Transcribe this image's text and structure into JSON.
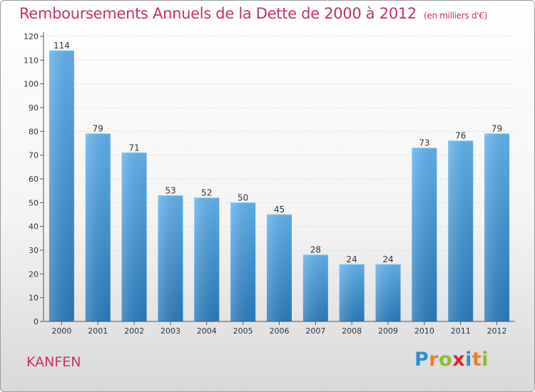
{
  "header": {
    "title": "Remboursements Annuels de la Dette de 2000 à 2012",
    "unit": "(en milliers d'€)"
  },
  "footer": {
    "town": "KANFEN",
    "logo_letters": [
      "P",
      "r",
      "o",
      "x",
      "i",
      "t",
      "i"
    ],
    "logo_colors": [
      "#2a8fd6",
      "#f07c22",
      "#8bbd2d",
      "#d6272d",
      "#2a8fd6",
      "#f07c22",
      "#8bbd2d"
    ]
  },
  "colors": {
    "title": "#c8325d",
    "bar_top": "#62b3ee",
    "bar_bottom": "#2b7cbd",
    "axis": "#555555",
    "grid": "#d6d6d6"
  },
  "chart_data": {
    "type": "bar",
    "categories": [
      "2000",
      "2001",
      "2002",
      "2003",
      "2004",
      "2005",
      "2006",
      "2007",
      "2008",
      "2009",
      "2010",
      "2011",
      "2012"
    ],
    "values": [
      114,
      79,
      71,
      53,
      52,
      50,
      45,
      28,
      24,
      24,
      73,
      76,
      79
    ],
    "data_labels": [
      "114",
      "79",
      "71",
      "53",
      "52",
      "50",
      "45",
      "28",
      "24",
      "24",
      "73",
      "76",
      "79"
    ],
    "yticks": [
      0,
      10,
      20,
      30,
      40,
      50,
      60,
      70,
      80,
      90,
      100,
      110,
      120
    ],
    "ylim": [
      0,
      120
    ],
    "grid": "horizontal dotted"
  }
}
